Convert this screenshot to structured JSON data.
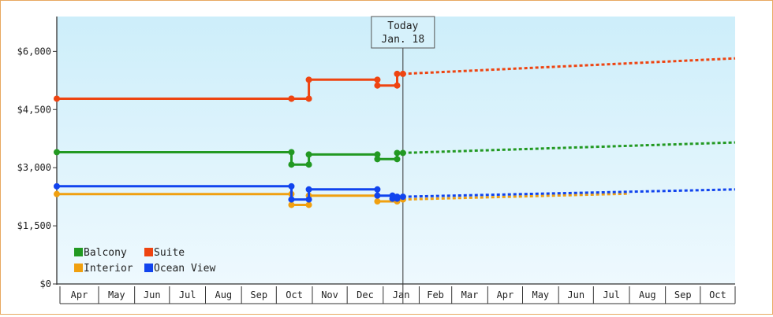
{
  "chart_data": {
    "type": "line",
    "title": "",
    "xlabel": "",
    "ylabel": "",
    "ylim": [
      0,
      6900
    ],
    "y_ticks": [
      0,
      1500,
      3000,
      4500,
      6000
    ],
    "y_tick_labels": [
      "$0",
      "$1,500",
      "$3,000",
      "$4,500",
      "$6,000"
    ],
    "x_range": [
      "2018-03-26",
      "2019-10-31"
    ],
    "month_ticks": [
      "2018-04-01",
      "2018-05-01",
      "2018-06-01",
      "2018-07-01",
      "2018-08-01",
      "2018-09-01",
      "2018-10-01",
      "2018-11-01",
      "2018-12-01",
      "2019-01-01",
      "2019-02-01",
      "2019-03-01",
      "2019-04-01",
      "2019-05-01",
      "2019-06-01",
      "2019-07-01",
      "2019-08-01",
      "2019-09-01",
      "2019-10-01"
    ],
    "month_labels": [
      "Apr",
      "May",
      "Jun",
      "Jul",
      "Aug",
      "Sep",
      "Oct",
      "Nov",
      "Dec",
      "Jan",
      "Feb",
      "Mar",
      "Apr",
      "May",
      "Jun",
      "Jul",
      "Aug",
      "Sep",
      "Oct"
    ],
    "today": {
      "date": "2019-01-18",
      "label_line1": "Today",
      "label_line2": "Jan. 18"
    },
    "grid": false,
    "legend_position": "bottom-left",
    "series": [
      {
        "name": "Balcony",
        "color": "#229922",
        "points": [
          [
            "2018-03-26",
            3400
          ],
          [
            "2018-10-14",
            3400
          ],
          [
            "2018-10-14",
            3080
          ],
          [
            "2018-10-29",
            3080
          ],
          [
            "2018-10-29",
            3340
          ],
          [
            "2018-12-27",
            3340
          ],
          [
            "2018-12-27",
            3220
          ],
          [
            "2019-01-13",
            3220
          ],
          [
            "2019-01-13",
            3380
          ],
          [
            "2019-01-18",
            3380
          ]
        ],
        "forecast": [
          [
            "2019-01-18",
            3380
          ],
          [
            "2019-10-31",
            3650
          ]
        ]
      },
      {
        "name": "Suite",
        "color": "#ee4411",
        "points": [
          [
            "2018-03-26",
            4780
          ],
          [
            "2018-10-14",
            4780
          ],
          [
            "2018-10-14",
            4780
          ],
          [
            "2018-10-29",
            4780
          ],
          [
            "2018-10-29",
            5270
          ],
          [
            "2018-12-27",
            5270
          ],
          [
            "2018-12-27",
            5120
          ],
          [
            "2019-01-13",
            5120
          ],
          [
            "2019-01-13",
            5420
          ],
          [
            "2019-01-18",
            5420
          ]
        ],
        "forecast": [
          [
            "2019-01-18",
            5420
          ],
          [
            "2019-10-31",
            5820
          ]
        ]
      },
      {
        "name": "Interior",
        "color": "#f0a010",
        "points": [
          [
            "2018-03-26",
            2320
          ],
          [
            "2018-10-14",
            2320
          ],
          [
            "2018-10-14",
            2040
          ],
          [
            "2018-10-29",
            2040
          ],
          [
            "2018-10-29",
            2280
          ],
          [
            "2018-12-27",
            2280
          ],
          [
            "2018-12-27",
            2130
          ],
          [
            "2019-01-13",
            2130
          ],
          [
            "2019-01-13",
            2180
          ],
          [
            "2019-01-18",
            2180
          ]
        ],
        "forecast": [
          [
            "2019-01-18",
            2180
          ],
          [
            "2019-08-01",
            2330
          ]
        ]
      },
      {
        "name": "Ocean View",
        "color": "#1144ee",
        "points": [
          [
            "2018-03-26",
            2520
          ],
          [
            "2018-10-14",
            2520
          ],
          [
            "2018-10-14",
            2180
          ],
          [
            "2018-10-29",
            2180
          ],
          [
            "2018-10-29",
            2440
          ],
          [
            "2018-12-27",
            2440
          ],
          [
            "2018-12-27",
            2280
          ],
          [
            "2019-01-09",
            2280
          ],
          [
            "2019-01-09",
            2200
          ],
          [
            "2019-01-13",
            2200
          ],
          [
            "2019-01-13",
            2250
          ],
          [
            "2019-01-18",
            2250
          ]
        ],
        "forecast": [
          [
            "2019-01-18",
            2250
          ],
          [
            "2019-10-31",
            2440
          ]
        ]
      }
    ],
    "legend": [
      {
        "name": "Balcony",
        "color": "#229922"
      },
      {
        "name": "Suite",
        "color": "#ee4411"
      },
      {
        "name": "Interior",
        "color": "#f0a010"
      },
      {
        "name": "Ocean View",
        "color": "#1144ee"
      }
    ]
  }
}
